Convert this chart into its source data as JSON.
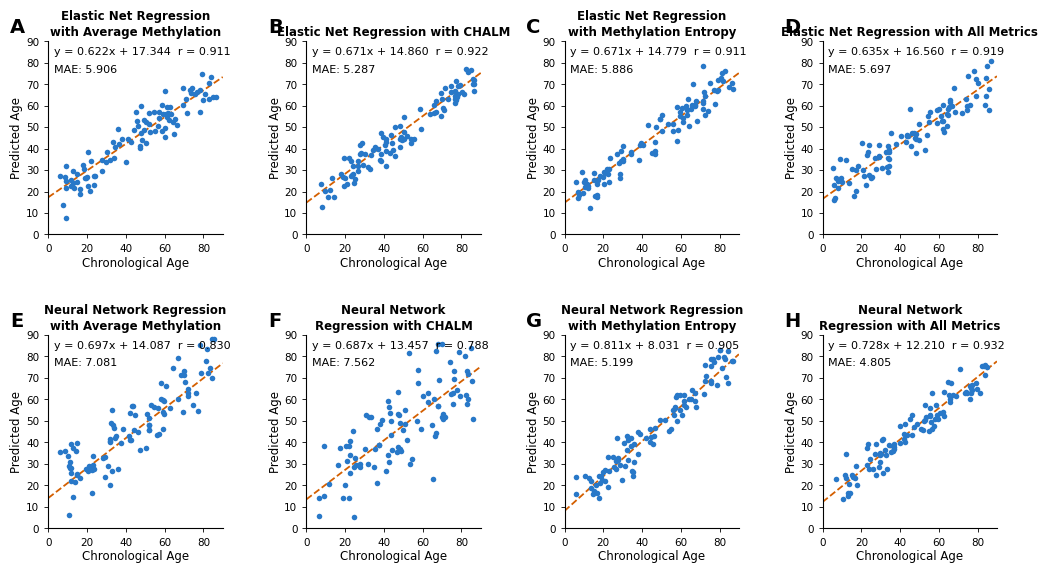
{
  "panels": [
    {
      "label": "A",
      "title": "Elastic Net Regression\nwith Average Methylation",
      "equation": "y = 0.622x + 17.344",
      "r": "r = 0.911",
      "mae": "MAE: 5.906",
      "slope": 0.622,
      "intercept": 17.344,
      "noise": 5.5
    },
    {
      "label": "B",
      "title": "Elastic Net Regression with CHALM",
      "equation": "y = 0.671x + 14.860",
      "r": "r = 0.922",
      "mae": "MAE: 5.287",
      "slope": 0.671,
      "intercept": 14.86,
      "noise": 4.8
    },
    {
      "label": "C",
      "title": "Elastic Net Regression\nwith Methylation Entropy",
      "equation": "y = 0.671x + 14.779",
      "r": "r = 0.911",
      "mae": "MAE: 5.886",
      "slope": 0.671,
      "intercept": 14.779,
      "noise": 5.4
    },
    {
      "label": "D",
      "title": "Elastic Net Regression with All Metrics",
      "equation": "y = 0.635x + 16.560",
      "r": "r = 0.919",
      "mae": "MAE: 5.697",
      "slope": 0.635,
      "intercept": 16.56,
      "noise": 5.2
    },
    {
      "label": "E",
      "title": "Neural Network Regression\nwith Average Methylation",
      "equation": "y = 0.697x + 14.087",
      "r": "r = 0.830",
      "mae": "MAE: 7.081",
      "slope": 0.697,
      "intercept": 14.087,
      "noise": 9.5
    },
    {
      "label": "F",
      "title": "Neural Network\nRegression with CHALM",
      "equation": "y = 0.687x + 13.457",
      "r": "r = 0.788",
      "mae": "MAE: 7.562",
      "slope": 0.687,
      "intercept": 13.457,
      "noise": 11.0
    },
    {
      "label": "G",
      "title": "Neural Network Regression\nwith Methylation Entropy",
      "equation": "y = 0.811x + 8.031",
      "r": "r = 0.905",
      "mae": "MAE: 5.199",
      "slope": 0.811,
      "intercept": 8.031,
      "noise": 5.5
    },
    {
      "label": "H",
      "title": "Neural Network\nRegression with All Metrics",
      "equation": "y = 0.728x + 12.210",
      "r": "r = 0.932",
      "mae": "MAE: 4.805",
      "slope": 0.728,
      "intercept": 12.21,
      "noise": 4.5
    }
  ],
  "dot_color": "#2878c8",
  "line_color": "#d45f00",
  "xlim": [
    0,
    90
  ],
  "ylim": [
    0,
    90
  ],
  "xticks": [
    0,
    20,
    40,
    60,
    80
  ],
  "yticks": [
    0,
    10,
    20,
    30,
    40,
    50,
    60,
    70,
    80,
    90
  ],
  "xlabel": "Chronological Age",
  "ylabel": "Predicted Age",
  "bg_color": "#ffffff",
  "n_points": 100,
  "label_fontsize": 14,
  "title_fontsize": 8.5,
  "annot_fontsize": 8.0,
  "tick_fontsize": 7.5,
  "axis_label_fontsize": 8.5
}
